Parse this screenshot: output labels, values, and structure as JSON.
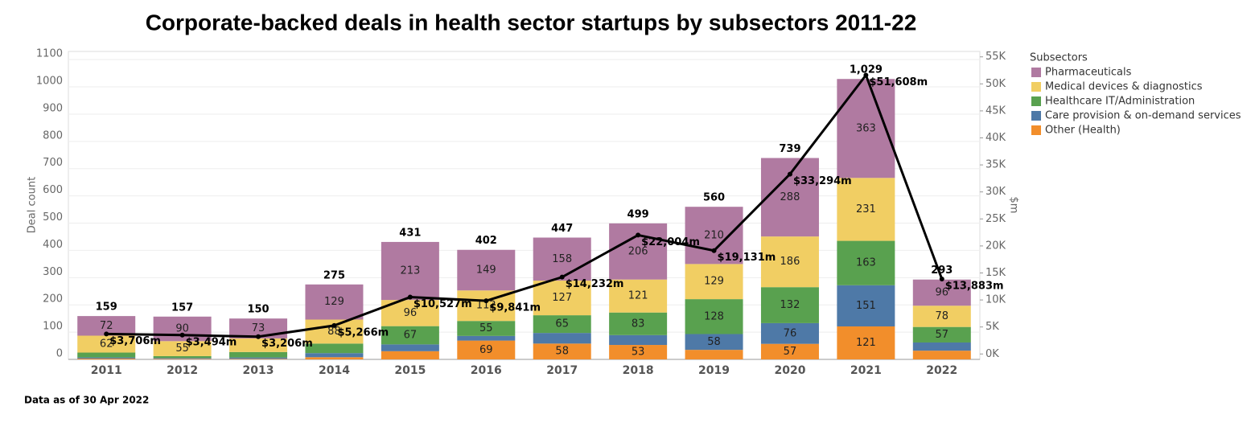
{
  "chart_data": {
    "type": "bar",
    "title": "Corporate-backed deals in health sector startups by subsectors 2011-22",
    "footnote": "Data as of 30 Apr 2022",
    "y_label": "Deal count",
    "y2_label": "$m",
    "legend_title": "Subsectors",
    "categories": [
      "2011",
      "2012",
      "2013",
      "2014",
      "2015",
      "2016",
      "2017",
      "2018",
      "2019",
      "2020",
      "2021",
      "2022"
    ],
    "series": [
      {
        "name": "Other (Health)",
        "color": "#f28e2b",
        "values": [
          3,
          2,
          2,
          8,
          30,
          69,
          58,
          53,
          35,
          57,
          121,
          32
        ]
      },
      {
        "name": "Care provision & on-demand services",
        "color": "#4e79a7",
        "values": [
          4,
          3,
          5,
          15,
          25,
          17,
          39,
          36,
          58,
          76,
          151,
          30
        ]
      },
      {
        "name": "Healthcare IT/Administration",
        "color": "#59a14f",
        "values": [
          18,
          7,
          20,
          35,
          67,
          55,
          65,
          83,
          128,
          132,
          163,
          57
        ]
      },
      {
        "name": "Medical devices & diagnostics",
        "color": "#f1ce63",
        "values": [
          62,
          55,
          50,
          88,
          96,
          112,
          127,
          121,
          129,
          186,
          231,
          78
        ]
      },
      {
        "name": "Pharmaceuticals",
        "color": "#b07aa1",
        "values": [
          72,
          90,
          73,
          129,
          213,
          149,
          158,
          206,
          210,
          288,
          363,
          96
        ]
      }
    ],
    "totals": [
      159,
      157,
      150,
      275,
      431,
      402,
      447,
      499,
      560,
      739,
      1029,
      293
    ],
    "total_labels": [
      "159",
      "157",
      "150",
      "275",
      "431",
      "402",
      "447",
      "499",
      "560",
      "739",
      "1,029",
      "293"
    ],
    "line": {
      "axis": "y2",
      "color": "#000000",
      "values": [
        3706,
        3494,
        3206,
        5266,
        10527,
        9841,
        14232,
        22004,
        19131,
        33294,
        51608,
        13883
      ],
      "value_labels": [
        "$3,706m",
        "$3,494m",
        "$3,206m",
        "$5,266m",
        "$10,527m",
        "$9,841m",
        "$14,232m",
        "$22,004m",
        "$19,131m",
        "$33,294m",
        "$51,608m",
        "$13,883m"
      ]
    },
    "ylim": [
      0,
      1130
    ],
    "yticks": [
      0,
      100,
      200,
      300,
      400,
      500,
      600,
      700,
      800,
      900,
      1000,
      1100
    ],
    "y2lim": [
      -1000,
      56000
    ],
    "y2ticks": [
      {
        "value": 0,
        "label": "0K"
      },
      {
        "value": 5000,
        "label": "5K"
      },
      {
        "value": 10000,
        "label": "10K"
      },
      {
        "value": 15000,
        "label": "15K"
      },
      {
        "value": 20000,
        "label": "20K"
      },
      {
        "value": 25000,
        "label": "25K"
      },
      {
        "value": 30000,
        "label": "30K"
      },
      {
        "value": 35000,
        "label": "35K"
      },
      {
        "value": 40000,
        "label": "40K"
      },
      {
        "value": 45000,
        "label": "45K"
      },
      {
        "value": 50000,
        "label": "50K"
      },
      {
        "value": 55000,
        "label": "55K"
      }
    ],
    "grid": true
  }
}
